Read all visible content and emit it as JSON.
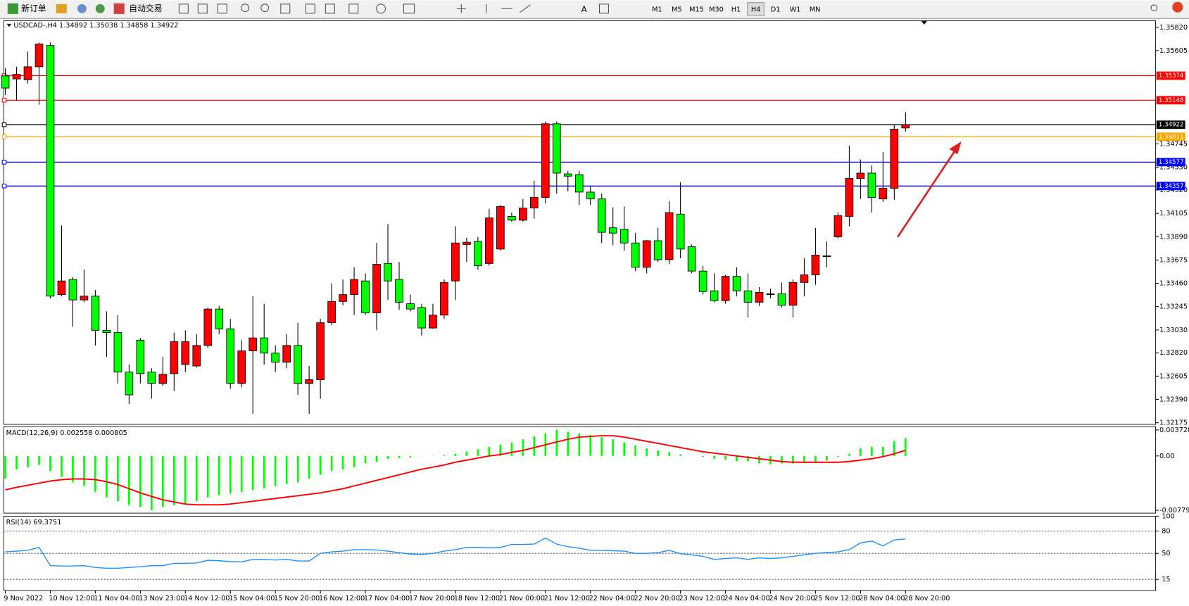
{
  "toolbar": {
    "buttons": [
      "新订单",
      "自动交易"
    ],
    "timeframes": [
      "M1",
      "M5",
      "M15",
      "M30",
      "H1",
      "H4",
      "D1",
      "W1",
      "MN"
    ],
    "selected_timeframe": "H4"
  },
  "chart_data": [
    {
      "type": "candlestick",
      "title": "USDCAD-,H4  1.34892 1.35038 1.34858 1.34922",
      "up_color": "#ff0000",
      "down_color": "#00ff00",
      "categories": [
        "9 Nov 2022",
        null,
        null,
        null,
        "10 Nov 12:00",
        null,
        null,
        null,
        "11 Nov 04:00",
        null,
        null,
        null,
        "13 Nov 23:00",
        null,
        null,
        null,
        "14 Nov 12:00",
        null,
        null,
        null,
        "15 Nov 04:00",
        null,
        null,
        null,
        "15 Nov 20:00",
        null,
        null,
        null,
        "16 Nov 12:00",
        null,
        null,
        null,
        "17 Nov 04:00",
        null,
        null,
        null,
        "17 Nov 20:00",
        null,
        null,
        null,
        "18 Nov 12:00",
        null,
        null,
        null,
        "21 Nov 00:00",
        null,
        null,
        null,
        "21 Nov 12:00",
        null,
        null,
        null,
        "22 Nov 04:00",
        null,
        null,
        null,
        "22 Nov 20:00",
        null,
        null,
        null,
        "23 Nov 12:00",
        null,
        null,
        null,
        "24 Nov 04:00",
        null,
        null,
        null,
        "24 Nov 20:00",
        null,
        null,
        null,
        "25 Nov 12:00",
        null,
        null,
        null,
        "28 Nov 04:00",
        null,
        null,
        null,
        "28 Nov 20:00"
      ],
      "open": [
        1.35372,
        1.35344,
        1.35337,
        1.35456,
        1.35652,
        1.33356,
        1.33496,
        1.33307,
        1.33342,
        1.33027,
        1.33006,
        1.32642,
        1.32936,
        1.32642,
        1.32537,
        1.32628,
        1.32712,
        1.32698,
        1.32887,
        1.33223,
        1.33041,
        1.32537,
        1.32838,
        1.32957,
        1.32817,
        1.32733,
        1.32887,
        1.32537,
        1.32572,
        1.33097,
        1.33293,
        1.33356,
        1.33482,
        1.33188,
        1.33643,
        1.33496,
        1.33272,
        1.33237,
        1.33048,
        1.33167,
        1.33482,
        1.33818,
        1.33846,
        1.33643,
        1.33776,
        1.34077,
        1.34042,
        1.34154,
        1.34252,
        1.34931,
        1.34469,
        1.34462,
        1.34301,
        1.34238,
        1.33972,
        1.33958,
        1.33832,
        1.33608,
        1.33853,
        1.33678,
        1.34098,
        1.33797,
        1.33573,
        1.33391,
        1.333,
        1.33524,
        1.33391,
        1.33286,
        1.33363,
        1.33363,
        1.33258,
        1.33468,
        1.33538,
        1.33713,
        1.33888,
        1.34077,
        1.34427,
        1.34476,
        1.34238,
        1.34336,
        1.34892
      ],
      "high": [
        1.35442,
        1.35456,
        1.35596,
        1.3568,
        1.3568,
        1.33993,
        1.33517,
        1.33587,
        1.33398,
        1.33202,
        1.33167,
        1.32712,
        1.32957,
        1.32677,
        1.32782,
        1.33006,
        1.33027,
        1.32992,
        1.33237,
        1.33251,
        1.33132,
        1.32936,
        1.33342,
        1.33272,
        1.32887,
        1.32992,
        1.33097,
        1.32698,
        1.33132,
        1.33461,
        1.33496,
        1.33608,
        1.33552,
        1.33832,
        1.34007,
        1.33657,
        1.33356,
        1.33272,
        1.33272,
        1.33496,
        1.33986,
        1.33881,
        1.33888,
        1.34147,
        1.34182,
        1.34112,
        1.34238,
        1.34406,
        1.34952,
        1.34952,
        1.34497,
        1.34497,
        1.34357,
        1.34287,
        1.34161,
        1.34168,
        1.33923,
        1.3386,
        1.33972,
        1.34217,
        1.34392,
        1.33818,
        1.33622,
        1.33552,
        1.33538,
        1.33608,
        1.33552,
        1.33426,
        1.33412,
        1.33468,
        1.33496,
        1.33692,
        1.33972,
        1.33846,
        1.34112,
        1.34728,
        1.34602,
        1.34546,
        1.34672,
        1.34917,
        1.35038
      ],
      "low": [
        1.35197,
        1.35148,
        1.35302,
        1.35106,
        1.33321,
        1.33342,
        1.33062,
        1.33286,
        1.32887,
        1.32782,
        1.32537,
        1.32348,
        1.32537,
        1.32397,
        1.32516,
        1.32467,
        1.32642,
        1.32684,
        1.32866,
        1.32992,
        1.32488,
        1.32502,
        1.32257,
        1.32712,
        1.32642,
        1.32677,
        1.32432,
        1.32257,
        1.32397,
        1.33076,
        1.33258,
        1.33167,
        1.33167,
        1.33027,
        1.33307,
        1.33216,
        1.33202,
        1.32978,
        1.33041,
        1.33132,
        1.33307,
        1.33657,
        1.33587,
        1.33622,
        1.33762,
        1.34028,
        1.34028,
        1.34056,
        1.34196,
        1.34287,
        1.34308,
        1.34182,
        1.34182,
        1.33832,
        1.33811,
        1.33762,
        1.33573,
        1.33552,
        1.33657,
        1.33636,
        1.33692,
        1.33552,
        1.33356,
        1.33286,
        1.33272,
        1.33342,
        1.33146,
        1.33251,
        1.33321,
        1.33237,
        1.33146,
        1.33342,
        1.33447,
        1.33608,
        1.33874,
        1.33986,
        1.34238,
        1.34112,
        1.3421,
        1.34231,
        1.34858
      ],
      "close": [
        1.3526,
        1.35386,
        1.35456,
        1.35666,
        1.33342,
        1.33482,
        1.33307,
        1.33342,
        1.33027,
        1.33006,
        1.32642,
        1.32432,
        1.32628,
        1.32537,
        1.32621,
        1.32922,
        1.32922,
        1.32887,
        1.33223,
        1.33041,
        1.32537,
        1.32838,
        1.32957,
        1.32817,
        1.32733,
        1.32887,
        1.32537,
        1.32572,
        1.33097,
        1.33293,
        1.33356,
        1.33496,
        1.33188,
        1.33636,
        1.33482,
        1.33286,
        1.33223,
        1.33048,
        1.33167,
        1.33468,
        1.33832,
        1.33839,
        1.33622,
        1.34063,
        1.34168,
        1.34042,
        1.34154,
        1.34252,
        1.34931,
        1.34476,
        1.34448,
        1.34301,
        1.34238,
        1.3393,
        1.33923,
        1.33832,
        1.33608,
        1.33853,
        1.33678,
        1.34112,
        1.33776,
        1.33573,
        1.33384,
        1.333,
        1.33524,
        1.33391,
        1.33286,
        1.33377,
        1.33363,
        1.33258,
        1.33468,
        1.33538,
        1.3372,
        1.33713,
        1.34084,
        1.34427,
        1.34476,
        1.34252,
        1.34336,
        1.34882,
        1.34922
      ],
      "ylim": [
        1.3216,
        1.3588
      ],
      "yticks": [
        {
          "value": 1.3582,
          "label": "1.35820"
        },
        1.35605,
        1.34745,
        {
          "value": 1.3453,
          "label": "1.34530"
        },
        {
          "value": 1.3432,
          "label": "1.34320"
        },
        1.34105,
        {
          "value": 1.3389,
          "label": "1.33890"
        },
        1.33675,
        {
          "value": 1.3346,
          "label": "1.33460"
        },
        1.33245,
        {
          "value": 1.3303,
          "label": "1.33030"
        },
        {
          "value": 1.3282,
          "label": "1.32820"
        },
        1.32605,
        {
          "value": 1.3239,
          "label": "1.32390"
        },
        1.32175
      ],
      "levels": [
        {
          "value": 1.35374,
          "color": "#ff0000"
        },
        {
          "value": 1.35148,
          "color": "#ff0000"
        },
        {
          "value": 1.34922,
          "color": "#000000"
        },
        {
          "value": 1.34811,
          "color": "#ffa500"
        },
        {
          "value": 1.34577,
          "color": "#0000ff"
        },
        {
          "value": 1.34357,
          "color": "#0000ff"
        }
      ]
    },
    {
      "type": "macd",
      "title": "MACD(12,26,9) 0.002558 0.000805",
      "ylim": [
        -0.0082,
        0.0042
      ],
      "yticks": [
        0.003728,
        {
          "value": 0,
          "label": "0.00"
        },
        -0.007792
      ],
      "histogram": {
        "color": "#00ff00",
        "values": [
          -0.00324,
          -0.00194,
          -0.00162,
          -0.0013,
          -0.00216,
          -0.00302,
          -0.00378,
          -0.00432,
          -0.00518,
          -0.00594,
          -0.00648,
          -0.00702,
          -0.00734,
          -0.007792,
          -0.00734,
          -0.00702,
          -0.0068,
          -0.00648,
          -0.00594,
          -0.00562,
          -0.0054,
          -0.00518,
          -0.00486,
          -0.00464,
          -0.00432,
          -0.004,
          -0.00378,
          -0.00324,
          -0.0027,
          -0.00216,
          -0.00194,
          -0.00162,
          -0.00108,
          -0.00086,
          -0.00043,
          -0.00032,
          -0.00022,
          -5e-05,
          3e-05,
          0.00011,
          0.00032,
          0.00065,
          0.00097,
          0.0013,
          0.00162,
          0.00194,
          0.00238,
          0.00281,
          0.00324,
          0.003728,
          0.00346,
          0.00324,
          0.00302,
          0.0027,
          0.00238,
          0.00194,
          0.00151,
          0.00108,
          0.00076,
          0.00054,
          0.00022,
          -2e-05,
          -0.00011,
          -0.00043,
          -0.00054,
          -0.00076,
          -0.00076,
          -0.00108,
          -0.00119,
          -0.00108,
          -0.00108,
          -0.00097,
          -0.00086,
          -0.00065,
          -0.00011,
          0.00032,
          0.00108,
          0.0013,
          0.0013,
          0.00216,
          0.002558
        ]
      },
      "signal": {
        "color": "#ff0000",
        "values": [
          -0.00486,
          -0.0045,
          -0.0042,
          -0.0039,
          -0.0036,
          -0.0034,
          -0.0033,
          -0.0033,
          -0.0034,
          -0.0037,
          -0.0041,
          -0.0047,
          -0.0053,
          -0.0058,
          -0.0063,
          -0.0066,
          -0.0069,
          -0.007,
          -0.007,
          -0.007,
          -0.0069,
          -0.0067,
          -0.0065,
          -0.0063,
          -0.0061,
          -0.0059,
          -0.0057,
          -0.0055,
          -0.0053,
          -0.005,
          -0.0047,
          -0.0043,
          -0.0039,
          -0.0035,
          -0.0031,
          -0.0027,
          -0.0023,
          -0.0019,
          -0.0016,
          -0.0013,
          -0.0009,
          -0.0006,
          -0.0003,
          0,
          0.0002,
          0.0005,
          0.0008,
          0.0012,
          0.0016,
          0.002,
          0.0024,
          0.0027,
          0.0028,
          0.0029,
          0.0029,
          0.0027,
          0.0024,
          0.0021,
          0.0018,
          0.0015,
          0.0012,
          0.0009,
          0.0006,
          0.0004,
          0.0002,
          0,
          -0.0002,
          -0.0004,
          -0.0006,
          -0.0008,
          -0.0009,
          -0.0009,
          -0.0009,
          -0.0009,
          -0.0009,
          -0.0008,
          -0.0006,
          -0.0004,
          -0.0001,
          0.0003,
          0.000805
        ]
      }
    },
    {
      "type": "line",
      "title": "RSI(14) 69.3751",
      "color": "#1e90ff",
      "ylim": [
        0,
        100
      ],
      "yticks": [
        100,
        80,
        50,
        15
      ],
      "levels": [
        80,
        50,
        15
      ],
      "values": [
        52,
        53,
        54,
        58,
        33.5,
        33,
        33,
        33.5,
        31,
        30,
        30,
        31,
        32,
        33.5,
        33.5,
        36.6,
        36.6,
        37,
        40.7,
        40,
        39,
        38.5,
        41.8,
        41.8,
        41,
        42,
        39.7,
        39.7,
        50,
        52,
        53,
        55,
        55,
        54.5,
        53,
        51,
        49,
        48.5,
        50,
        53,
        55,
        58,
        58,
        57.5,
        58,
        62,
        62,
        62.4,
        70.6,
        62.4,
        59,
        57,
        54,
        54,
        53.5,
        53,
        50,
        50,
        51,
        54,
        49.5,
        48,
        46,
        41.8,
        43,
        44,
        42,
        44,
        43,
        44,
        46,
        48,
        50,
        51,
        52,
        55,
        64,
        66.5,
        60,
        68,
        69.3751
      ]
    }
  ]
}
